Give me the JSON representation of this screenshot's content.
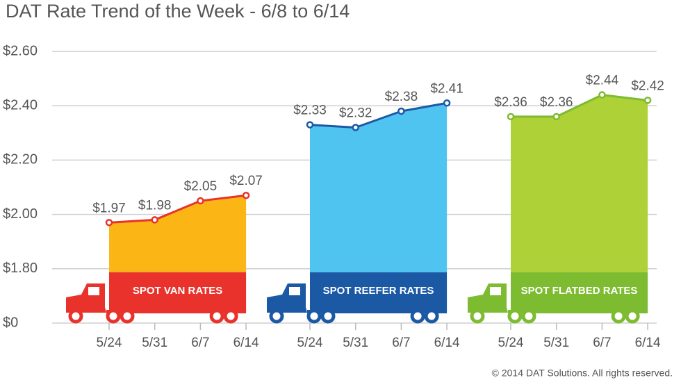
{
  "chart_data": {
    "type": "area-groups",
    "title": "DAT Rate Trend of the Week - 6/8 to 6/14",
    "footnote": "© 2014 DAT Solutions. All rights reserved.",
    "categories": [
      "5/24",
      "5/31",
      "6/7",
      "6/14"
    ],
    "ylim": [
      0,
      2.6
    ],
    "yticks": [
      {
        "value": 0,
        "label": "$0"
      },
      {
        "value": 1.8,
        "label": "$1.80"
      },
      {
        "value": 2.0,
        "label": "$2.00"
      },
      {
        "value": 2.2,
        "label": "$2.20"
      },
      {
        "value": 2.4,
        "label": "$2.40"
      },
      {
        "value": 2.6,
        "label": "$2.60"
      }
    ],
    "grid": true,
    "series": [
      {
        "name": "SPOT VAN RATES",
        "color": "#e8322b",
        "fill_color": "#fbb515",
        "values": [
          1.97,
          1.98,
          2.05,
          2.07
        ],
        "value_labels": [
          "$1.97",
          "$1.98",
          "$2.05",
          "$2.07"
        ]
      },
      {
        "name": "SPOT REEFER RATES",
        "color": "#1b59a5",
        "fill_color": "#4fc4f0",
        "values": [
          2.33,
          2.32,
          2.38,
          2.41
        ],
        "value_labels": [
          "$2.33",
          "$2.32",
          "$2.38",
          "$2.41"
        ]
      },
      {
        "name": "SPOT FLATBED RATES",
        "color": "#7dbb30",
        "fill_color": "#add136",
        "values": [
          2.36,
          2.36,
          2.44,
          2.42
        ],
        "value_labels": [
          "$2.36",
          "$2.36",
          "$2.44",
          "$2.42"
        ]
      }
    ]
  }
}
